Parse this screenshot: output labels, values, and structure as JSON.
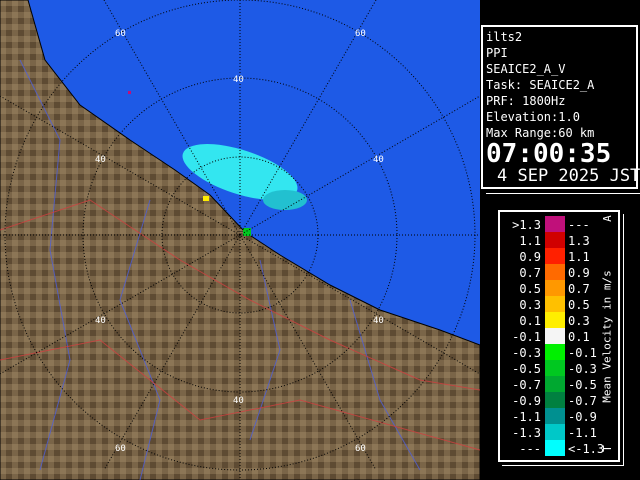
{
  "info": {
    "radar": "ilts2",
    "mode": "PPI",
    "product": "SEAICE2_A_V",
    "task": "Task: SEAICE2_A",
    "prf": "PRF: 1800Hz",
    "elevation": "Elevation:1.0",
    "max_range": "Max Range:60 km",
    "time": "07:00:35",
    "date": "4 SEP 2025 JST"
  },
  "map": {
    "ring_labels": [
      "60",
      "60",
      "40",
      "40",
      "40",
      "40",
      "40",
      "40",
      "60",
      "60"
    ],
    "land_color": "#7a6548",
    "sea_color": "#1e5ae6",
    "echo_color": "#33e6f0"
  },
  "legend": {
    "unit": "Mean Velocity in m/s",
    "top_mark": "A",
    "bottom_mark": "T",
    "rows": [
      {
        "left": ">1.3",
        "right": "---",
        "color": "#c0107a"
      },
      {
        "left": "1.1",
        "right": "1.3",
        "color": "#d00000"
      },
      {
        "left": "0.9",
        "right": "1.1",
        "color": "#ff2000"
      },
      {
        "left": "0.7",
        "right": "0.9",
        "color": "#ff6a00"
      },
      {
        "left": "0.5",
        "right": "0.7",
        "color": "#ff9800"
      },
      {
        "left": "0.3",
        "right": "0.5",
        "color": "#ffc000"
      },
      {
        "left": "0.1",
        "right": "0.3",
        "color": "#ffee00"
      },
      {
        "left": "-0.1",
        "right": "0.1",
        "color": "#f5f5f5"
      },
      {
        "left": "-0.3",
        "right": "-0.1",
        "color": "#00f000"
      },
      {
        "left": "-0.5",
        "right": "-0.3",
        "color": "#00c820"
      },
      {
        "left": "-0.7",
        "right": "-0.5",
        "color": "#00a830"
      },
      {
        "left": "-0.9",
        "right": "-0.7",
        "color": "#008040"
      },
      {
        "left": "-1.1",
        "right": "-0.9",
        "color": "#009090"
      },
      {
        "left": "-1.3",
        "right": "-1.1",
        "color": "#00c8c8"
      },
      {
        "left": "---",
        "right": "<-1.3",
        "color": "#00ffff"
      }
    ]
  }
}
